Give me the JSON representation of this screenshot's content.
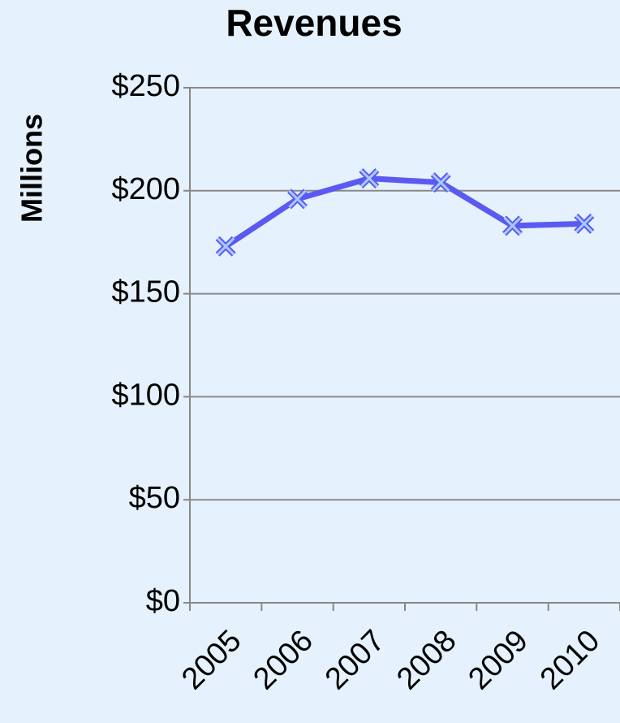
{
  "chart_data": {
    "type": "line",
    "title": "Revenues",
    "y_label": "Millions",
    "categories": [
      "2005",
      "2006",
      "2007",
      "2008",
      "2009",
      "2010"
    ],
    "series": [
      {
        "name": "Revenues",
        "color": "#5a5af2",
        "values": [
          173,
          196,
          206,
          204,
          183,
          184
        ]
      }
    ],
    "ylim": [
      0,
      250
    ],
    "yticks": [
      {
        "value": 0,
        "label": "$0"
      },
      {
        "value": 50,
        "label": "$50"
      },
      {
        "value": 100,
        "label": "$100"
      },
      {
        "value": 150,
        "label": "$150"
      },
      {
        "value": 200,
        "label": "$200"
      },
      {
        "value": 250,
        "label": "$250"
      }
    ],
    "grid": true
  }
}
